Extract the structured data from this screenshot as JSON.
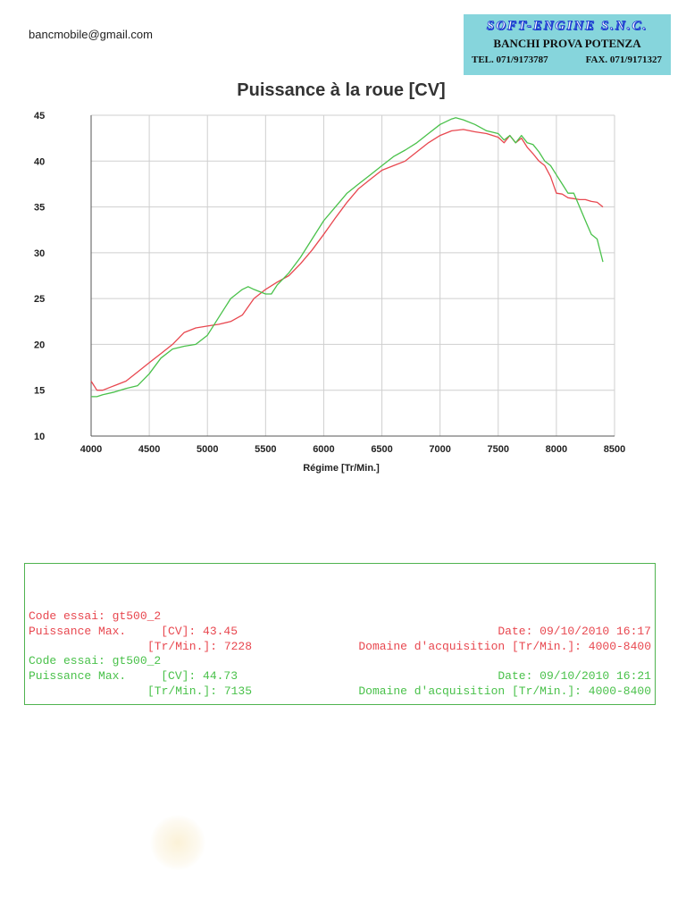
{
  "header": {
    "email": "bancmobile@gmail.com",
    "logo": {
      "brand": "SOFT-ENGINE S.N.C.",
      "subtitle": "BANCHI PROVA POTENZA",
      "tel": "TEL. 071/9173787",
      "fax": "FAX. 071/9171327"
    }
  },
  "chart_data": {
    "type": "line",
    "title": "Puissance à la roue  [CV]",
    "xlabel": "Régime [Tr/Min.]",
    "ylabel": "",
    "xlim": [
      4000,
      8500
    ],
    "ylim": [
      10,
      45
    ],
    "xticks": [
      4000,
      4500,
      5000,
      5500,
      6000,
      6500,
      7000,
      7500,
      8000,
      8500
    ],
    "yticks": [
      10,
      15,
      20,
      25,
      30,
      35,
      40,
      45
    ],
    "grid": true,
    "legend": "none",
    "series": [
      {
        "color": "#e8474f",
        "x": [
          4000,
          4050,
          4100,
          4200,
          4300,
          4400,
          4500,
          4600,
          4700,
          4800,
          4900,
          5000,
          5100,
          5200,
          5300,
          5400,
          5500,
          5600,
          5700,
          5800,
          5900,
          6000,
          6100,
          6200,
          6300,
          6400,
          6500,
          6600,
          6700,
          6800,
          6900,
          7000,
          7100,
          7200,
          7300,
          7400,
          7500,
          7550,
          7600,
          7650,
          7700,
          7750,
          7800,
          7850,
          7900,
          7950,
          8000,
          8050,
          8100,
          8150,
          8200,
          8250,
          8300,
          8350,
          8400
        ],
        "y": [
          16.0,
          15.0,
          15.0,
          15.5,
          16.0,
          17.0,
          18.0,
          19.0,
          20.0,
          21.3,
          21.8,
          22.0,
          22.2,
          22.5,
          23.2,
          25.0,
          26.0,
          26.8,
          27.5,
          28.8,
          30.3,
          32.0,
          33.8,
          35.5,
          37.0,
          38.0,
          39.0,
          39.5,
          40.0,
          41.0,
          42.0,
          42.8,
          43.3,
          43.45,
          43.2,
          43.0,
          42.6,
          42.0,
          42.8,
          42.0,
          42.5,
          41.5,
          40.8,
          40.0,
          39.5,
          38.3,
          36.5,
          36.4,
          36.0,
          35.9,
          35.8,
          35.8,
          35.6,
          35.5,
          35.0
        ]
      },
      {
        "color": "#49c14a",
        "x": [
          4000,
          4050,
          4100,
          4200,
          4300,
          4400,
          4500,
          4600,
          4700,
          4800,
          4900,
          5000,
          5100,
          5200,
          5300,
          5350,
          5400,
          5500,
          5550,
          5600,
          5700,
          5800,
          5900,
          6000,
          6100,
          6200,
          6300,
          6400,
          6500,
          6600,
          6700,
          6800,
          6900,
          7000,
          7100,
          7135,
          7200,
          7300,
          7400,
          7500,
          7550,
          7600,
          7650,
          7700,
          7750,
          7800,
          7850,
          7900,
          7950,
          8000,
          8050,
          8100,
          8150,
          8200,
          8250,
          8300,
          8350,
          8400
        ],
        "y": [
          14.3,
          14.3,
          14.5,
          14.8,
          15.2,
          15.5,
          16.8,
          18.5,
          19.5,
          19.8,
          20.0,
          21.0,
          23.0,
          25.0,
          26.0,
          26.3,
          26.0,
          25.5,
          25.5,
          26.5,
          27.8,
          29.5,
          31.5,
          33.5,
          35.0,
          36.5,
          37.5,
          38.5,
          39.5,
          40.5,
          41.2,
          42.0,
          43.0,
          44.0,
          44.6,
          44.73,
          44.5,
          44.0,
          43.3,
          43.0,
          42.3,
          42.8,
          42.0,
          42.8,
          42.0,
          41.8,
          41.0,
          40.0,
          39.5,
          38.5,
          37.5,
          36.5,
          36.5,
          35.0,
          33.5,
          32.0,
          31.5,
          29.0
        ]
      }
    ]
  },
  "info": {
    "runs": [
      {
        "color": "#e8474f",
        "code_line": "Code essai: gt500_2",
        "date_line": "Date: 09/10/2010 16:17",
        "power_line": "Puissance Max.     [CV]: 43.45",
        "domain_line": "Domaine d'acquisition [Tr/Min.]: 4000-8400",
        "rpm_line": "[Tr/Min.]: 7228"
      },
      {
        "color": "#49c14a",
        "code_line": "Code essai: gt500_2",
        "date_line": "Date: 09/10/2010 16:21",
        "power_line": "Puissance Max.     [CV]: 44.73",
        "domain_line": "Domaine d'acquisition [Tr/Min.]: 4000-8400",
        "rpm_line": "[Tr/Min.]: 7135"
      }
    ]
  }
}
